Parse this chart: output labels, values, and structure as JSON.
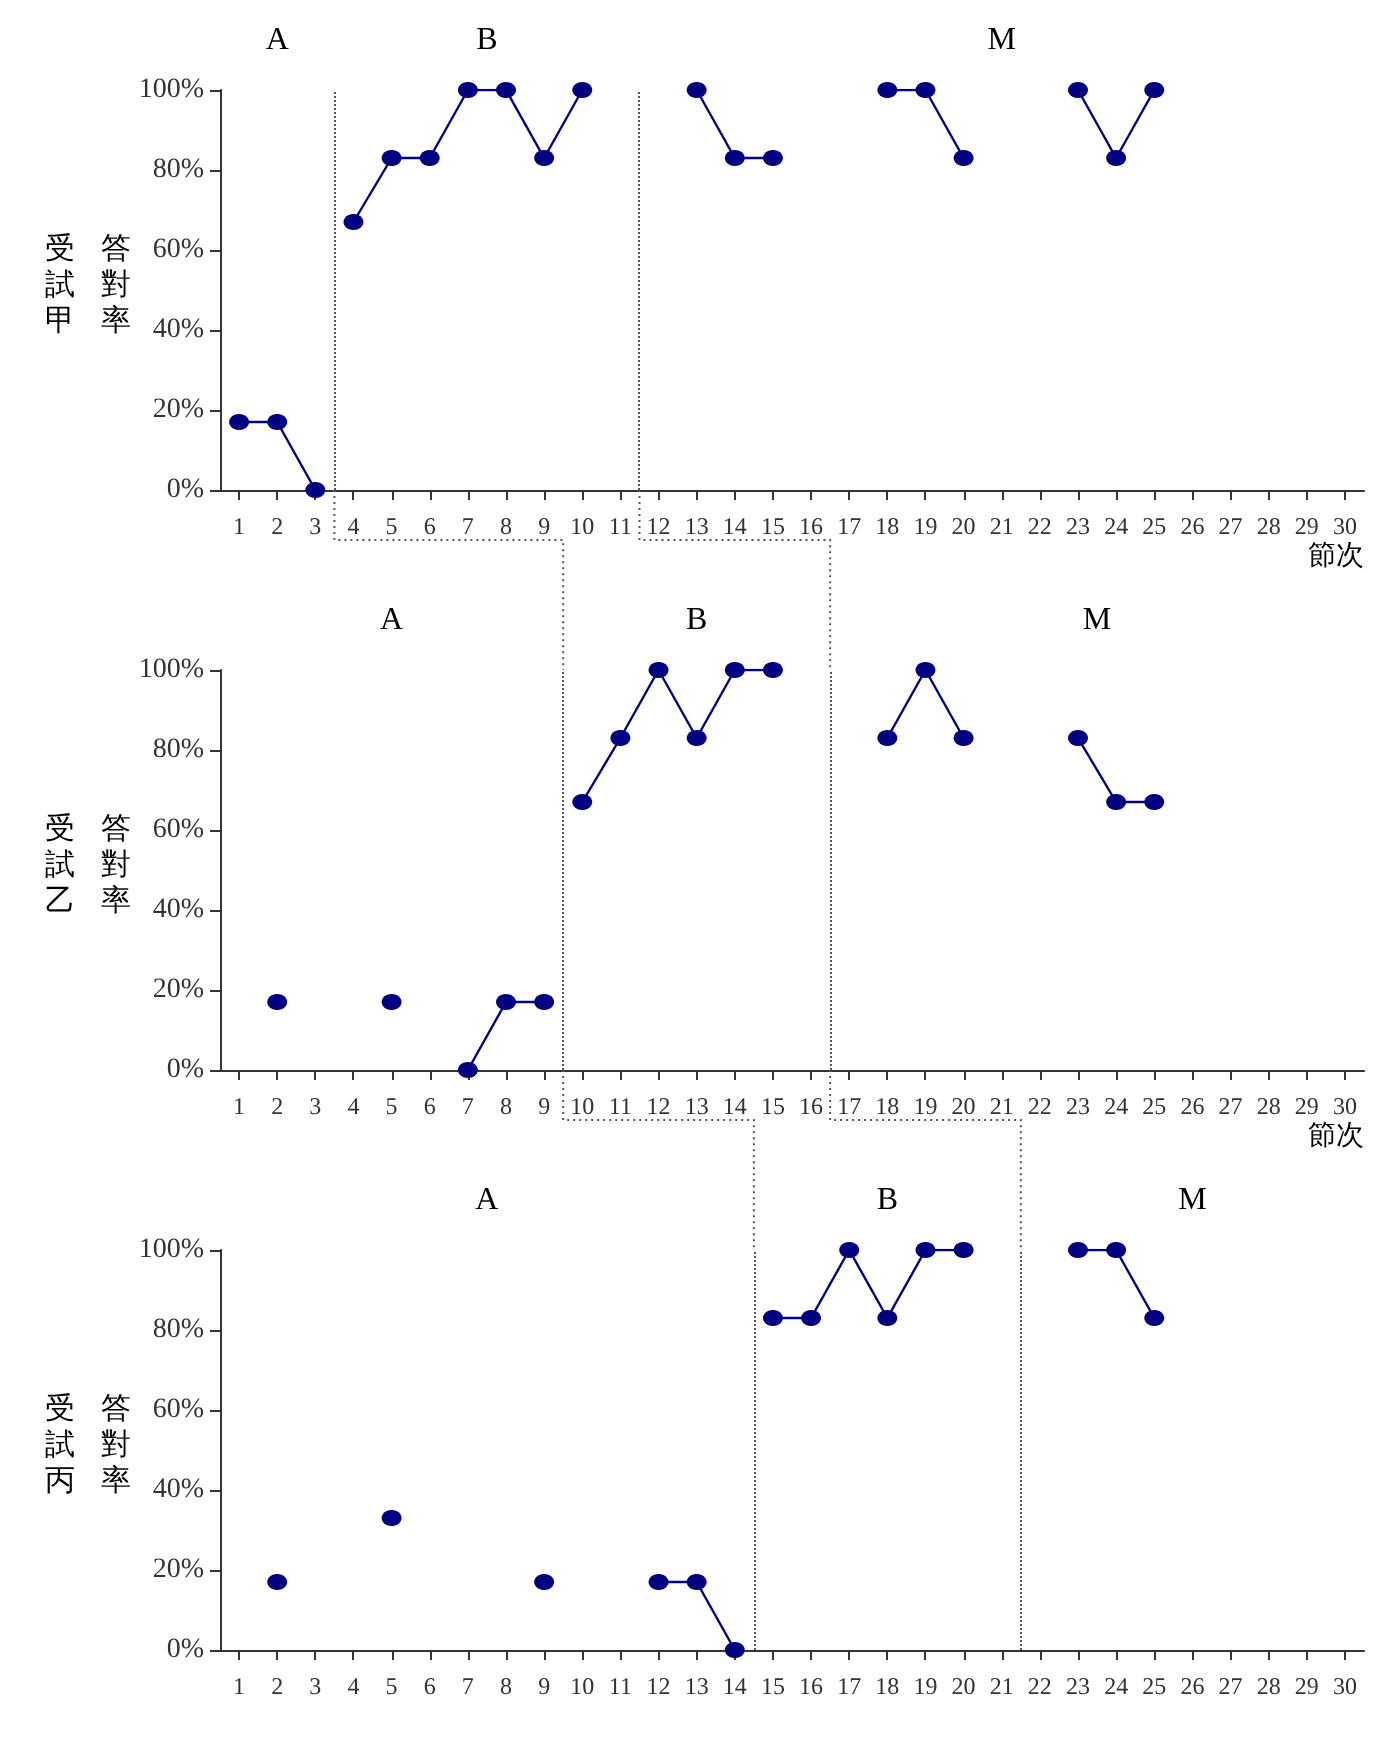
{
  "chart_data": [
    {
      "type": "line",
      "ylabel": "受試甲答對率",
      "xlabel": "節次",
      "annotations": [
        "A",
        "B",
        "M"
      ],
      "marker": "circle",
      "xlim": [
        0.5,
        30.5
      ],
      "xticks": [
        1,
        2,
        3,
        4,
        5,
        6,
        7,
        8,
        9,
        10,
        11,
        12,
        13,
        14,
        15,
        16,
        17,
        18,
        19,
        20,
        21,
        22,
        23,
        24,
        25,
        26,
        27,
        28,
        29,
        30
      ],
      "ylim": [
        0,
        100
      ],
      "yticks": [
        {
          "value": 0,
          "label": "0%"
        },
        {
          "value": 20,
          "label": "20%"
        },
        {
          "value": 40,
          "label": "40%"
        },
        {
          "value": 60,
          "label": "60%"
        },
        {
          "value": 80,
          "label": "80%"
        },
        {
          "value": 100,
          "label": "100%"
        }
      ],
      "ref_lines": [
        {
          "axis": "x",
          "value": 3.5,
          "line_style": "dotted"
        },
        {
          "axis": "x",
          "value": 11.5,
          "line_style": "dotted"
        }
      ],
      "series": [
        {
          "color": "#000080",
          "x": [
            1,
            2,
            3
          ],
          "values": [
            17,
            17,
            0
          ]
        },
        {
          "color": "#000080",
          "x": [
            4,
            5,
            6,
            7,
            8,
            9,
            10
          ],
          "values": [
            67,
            83,
            83,
            100,
            100,
            83,
            100
          ]
        },
        {
          "color": "#000080",
          "x": [
            13,
            14,
            15
          ],
          "values": [
            100,
            83,
            83
          ]
        },
        {
          "color": "#000080",
          "x": [
            18,
            19,
            20
          ],
          "values": [
            100,
            100,
            83
          ]
        },
        {
          "color": "#000080",
          "x": [
            23,
            24,
            25
          ],
          "values": [
            100,
            83,
            100
          ]
        }
      ]
    },
    {
      "type": "line",
      "ylabel": "受試乙答對率",
      "xlabel": "節次",
      "annotations": [
        "A",
        "B",
        "M"
      ],
      "marker": "circle",
      "xlim": [
        0.5,
        30.5
      ],
      "xticks": [
        1,
        2,
        3,
        4,
        5,
        6,
        7,
        8,
        9,
        10,
        11,
        12,
        13,
        14,
        15,
        16,
        17,
        18,
        19,
        20,
        21,
        22,
        23,
        24,
        25,
        26,
        27,
        28,
        29,
        30
      ],
      "ylim": [
        0,
        100
      ],
      "yticks": [
        {
          "value": 0,
          "label": "0%"
        },
        {
          "value": 20,
          "label": "20%"
        },
        {
          "value": 40,
          "label": "40%"
        },
        {
          "value": 60,
          "label": "60%"
        },
        {
          "value": 80,
          "label": "80%"
        },
        {
          "value": 100,
          "label": "100%"
        }
      ],
      "ref_lines": [
        {
          "axis": "x",
          "value": 9.5,
          "line_style": "dotted"
        },
        {
          "axis": "x",
          "value": 16.5,
          "line_style": "dotted"
        }
      ],
      "series": [
        {
          "color": "#000080",
          "x": [
            2
          ],
          "values": [
            17
          ]
        },
        {
          "color": "#000080",
          "x": [
            5
          ],
          "values": [
            17
          ]
        },
        {
          "color": "#000080",
          "x": [
            7,
            8,
            9
          ],
          "values": [
            0,
            17,
            17
          ]
        },
        {
          "color": "#000080",
          "x": [
            10,
            11,
            12,
            13,
            14,
            15
          ],
          "values": [
            67,
            83,
            100,
            83,
            100,
            100
          ]
        },
        {
          "color": "#000080",
          "x": [
            18,
            19,
            20
          ],
          "values": [
            83,
            100,
            83
          ]
        },
        {
          "color": "#000080",
          "x": [
            23,
            24,
            25
          ],
          "values": [
            83,
            67,
            67
          ]
        }
      ]
    },
    {
      "type": "line",
      "ylabel": "受試丙答對率",
      "annotations": [
        "A",
        "B",
        "M"
      ],
      "marker": "circle",
      "xlim": [
        0.5,
        30.5
      ],
      "xticks": [
        1,
        2,
        3,
        4,
        5,
        6,
        7,
        8,
        9,
        10,
        11,
        12,
        13,
        14,
        15,
        16,
        17,
        18,
        19,
        20,
        21,
        22,
        23,
        24,
        25,
        26,
        27,
        28,
        29,
        30
      ],
      "ylim": [
        0,
        100
      ],
      "yticks": [
        {
          "value": 0,
          "label": "0%"
        },
        {
          "value": 20,
          "label": "20%"
        },
        {
          "value": 40,
          "label": "40%"
        },
        {
          "value": 60,
          "label": "60%"
        },
        {
          "value": 80,
          "label": "80%"
        },
        {
          "value": 100,
          "label": "100%"
        }
      ],
      "ref_lines": [
        {
          "axis": "x",
          "value": 14.5,
          "line_style": "dotted"
        },
        {
          "axis": "x",
          "value": 21.5,
          "line_style": "dotted"
        }
      ],
      "series": [
        {
          "color": "#000080",
          "x": [
            2
          ],
          "values": [
            17
          ]
        },
        {
          "color": "#000080",
          "x": [
            5
          ],
          "values": [
            33
          ]
        },
        {
          "color": "#000080",
          "x": [
            9
          ],
          "values": [
            17
          ]
        },
        {
          "color": "#000080",
          "x": [
            12,
            13,
            14
          ],
          "values": [
            17,
            17,
            0
          ]
        },
        {
          "color": "#000080",
          "x": [
            15,
            16,
            17,
            18,
            19,
            20
          ],
          "values": [
            83,
            83,
            100,
            83,
            100,
            100
          ]
        },
        {
          "color": "#000080",
          "x": [
            23,
            24,
            25
          ],
          "values": [
            100,
            100,
            83
          ]
        }
      ]
    }
  ]
}
